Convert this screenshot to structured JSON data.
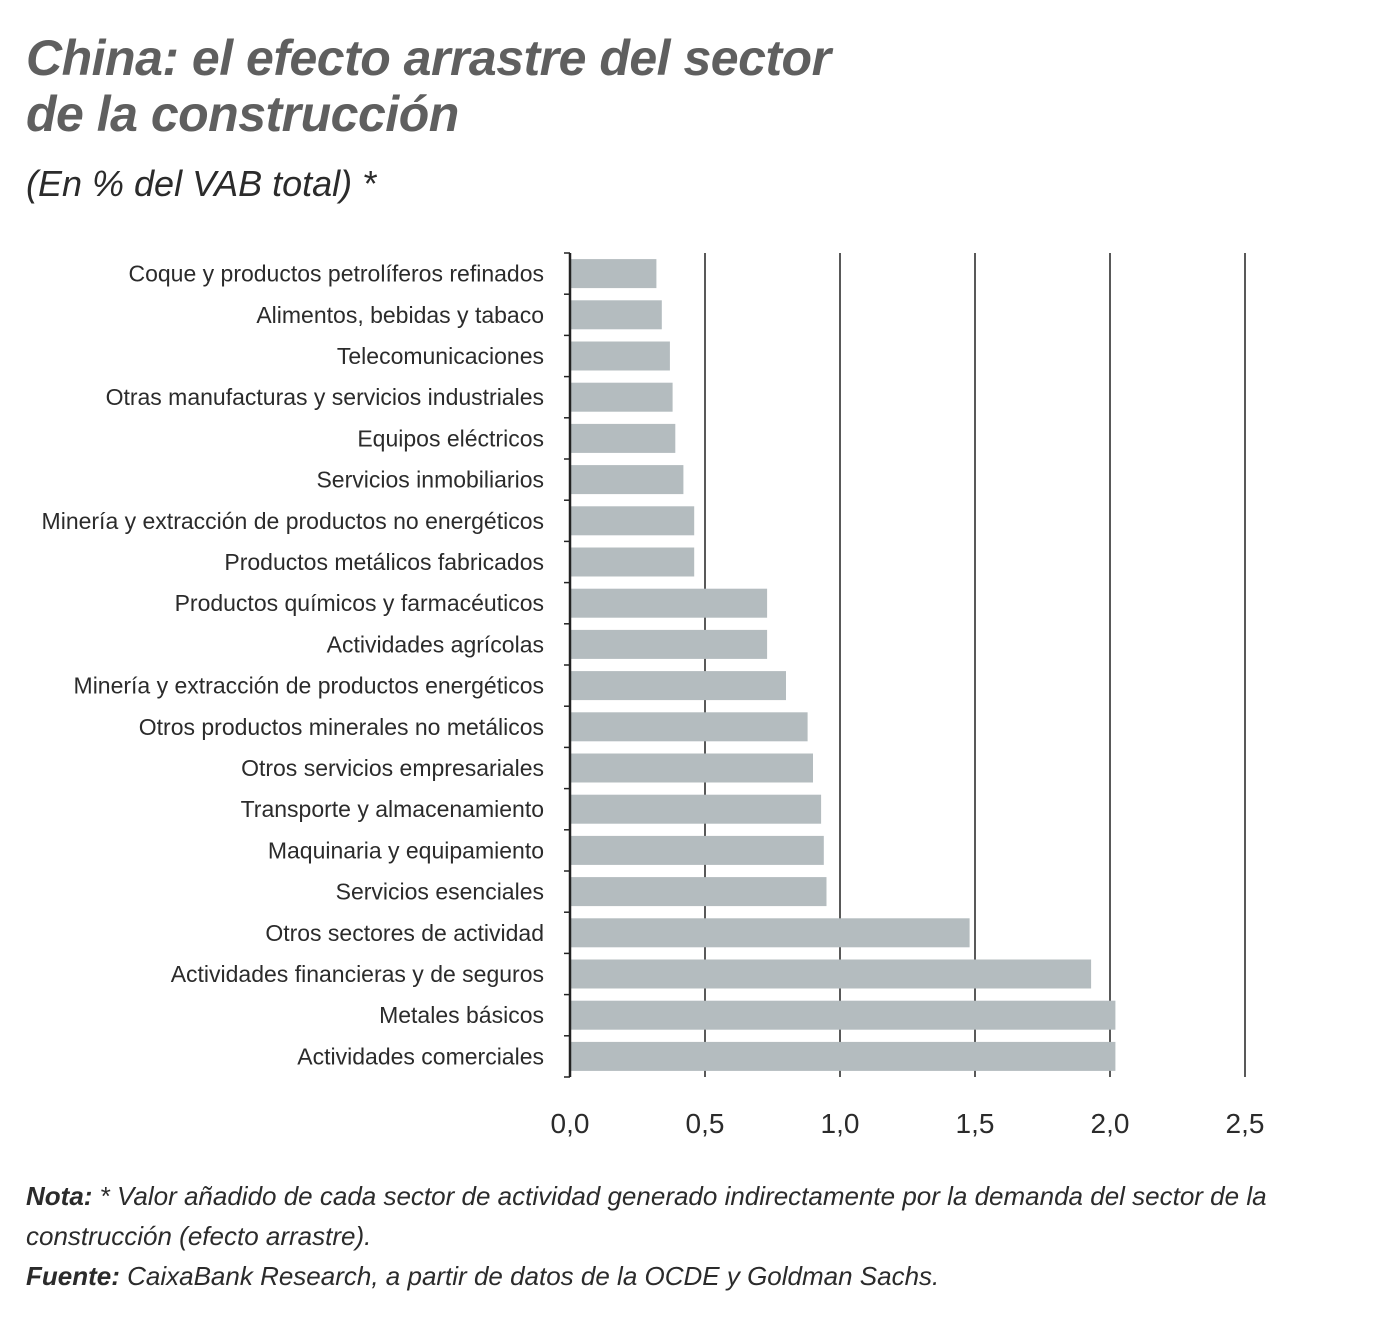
{
  "header": {
    "title_line1": "China: el efecto arrastre del sector",
    "title_line2": "de la construcción",
    "subtitle": "(En % del VAB total) *"
  },
  "colors": {
    "bar": "#b4bcbf",
    "grid": "#222222",
    "axis": "#222222",
    "title": "#5f5f5f",
    "text": "#2b2b2b"
  },
  "chart_data": {
    "type": "bar",
    "orientation": "horizontal",
    "title": "China: el efecto arrastre del sector de la construcción",
    "subtitle": "(En % del VAB total) *",
    "xlabel": "",
    "ylabel": "",
    "xlim": [
      0,
      2.5
    ],
    "xticks": [
      "0,0",
      "0,5",
      "1,0",
      "1,5",
      "2,0",
      "2,5"
    ],
    "grid": "vertical",
    "legend": "none",
    "categories": [
      "Coque y productos petrolíferos refinados",
      "Alimentos, bebidas y tabaco",
      "Telecomunicaciones",
      "Otras manufacturas y servicios industriales",
      "Equipos eléctricos",
      "Servicios inmobiliarios",
      "Minería y extracción de productos no energéticos",
      "Productos metálicos fabricados",
      "Productos químicos y farmacéuticos",
      "Actividades agrícolas",
      "Minería y extracción de productos energéticos",
      "Otros productos minerales no metálicos",
      "Otros servicios empresariales",
      "Transporte y almacenamiento",
      "Maquinaria y equipamiento",
      "Servicios esenciales",
      "Otros sectores de actividad",
      "Actividades financieras y de seguros",
      "Metales básicos",
      "Actividades comerciales"
    ],
    "values": [
      0.32,
      0.34,
      0.37,
      0.38,
      0.39,
      0.42,
      0.46,
      0.46,
      0.73,
      0.73,
      0.8,
      0.88,
      0.9,
      0.93,
      0.94,
      0.95,
      1.48,
      1.93,
      2.02,
      2.02
    ]
  },
  "footer": {
    "note_label": "Nota:",
    "note_text": " * Valor añadido de cada sector de actividad generado indirectamente por la demanda del sector de la construcción (efecto arrastre).",
    "source_label": "Fuente:",
    "source_text": " CaixaBank Research, a partir de datos de la OCDE y Goldman Sachs."
  }
}
